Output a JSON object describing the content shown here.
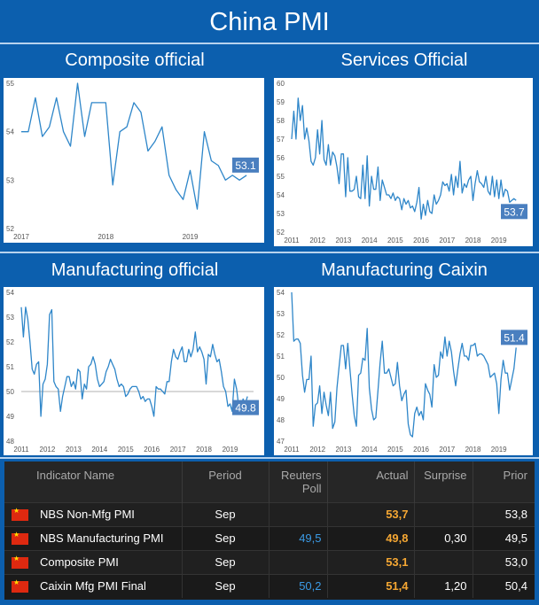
{
  "page": {
    "title": "China PMI"
  },
  "chart_data": [
    {
      "type": "line",
      "title": "Composite official",
      "x_tick_labels": [
        "2017",
        "2018",
        "2019"
      ],
      "x_tick_positions": [
        2017.0,
        2018.0,
        2019.0
      ],
      "xlim": [
        2017.0,
        2019.75
      ],
      "ylim": [
        52,
        55
      ],
      "y_ticks": [
        52,
        53,
        54,
        55
      ],
      "last_value_label": "53.1",
      "color": "#2e86c9",
      "series": [
        {
          "x": [
            2017.0,
            2017.083,
            2017.167,
            2017.25,
            2017.333,
            2017.417,
            2017.5,
            2017.583,
            2017.667,
            2017.75,
            2017.833,
            2017.917,
            2018.0,
            2018.083,
            2018.167,
            2018.25,
            2018.333,
            2018.417,
            2018.5,
            2018.583,
            2018.667,
            2018.75,
            2018.833,
            2018.917,
            2019.0,
            2019.083,
            2019.167,
            2019.25,
            2019.333,
            2019.417,
            2019.5,
            2019.583,
            2019.667
          ],
          "values": [
            54.0,
            54.0,
            54.7,
            53.9,
            54.1,
            54.7,
            54.0,
            53.7,
            55.0,
            53.9,
            54.6,
            54.6,
            54.6,
            52.9,
            54.0,
            54.1,
            54.6,
            54.4,
            53.6,
            53.8,
            54.1,
            53.1,
            52.8,
            52.6,
            53.2,
            52.4,
            54.0,
            53.4,
            53.3,
            53.0,
            53.1,
            53.0,
            53.1
          ]
        }
      ]
    },
    {
      "type": "line",
      "title": "Services Official",
      "x_tick_labels": [
        "2011",
        "2012",
        "2013",
        "2014",
        "2015",
        "2016",
        "2017",
        "2018",
        "2019"
      ],
      "x_tick_positions": [
        2011,
        2012,
        2013,
        2014,
        2015,
        2016,
        2017,
        2018,
        2019
      ],
      "xlim": [
        2011.0,
        2019.9
      ],
      "ylim": [
        52,
        60
      ],
      "y_ticks": [
        52,
        53,
        54,
        55,
        56,
        57,
        58,
        59,
        60
      ],
      "last_value_label": "53.7",
      "color": "#2e86c9",
      "series": [
        {
          "x": [
            2011.0,
            2011.083,
            2011.167,
            2011.25,
            2011.333,
            2011.417,
            2011.5,
            2011.583,
            2011.667,
            2011.75,
            2011.833,
            2011.917,
            2012.0,
            2012.083,
            2012.167,
            2012.25,
            2012.333,
            2012.417,
            2012.5,
            2012.583,
            2012.667,
            2012.75,
            2012.833,
            2012.917,
            2013.0,
            2013.083,
            2013.167,
            2013.25,
            2013.333,
            2013.417,
            2013.5,
            2013.583,
            2013.667,
            2013.75,
            2013.833,
            2013.917,
            2014.0,
            2014.083,
            2014.167,
            2014.25,
            2014.333,
            2014.417,
            2014.5,
            2014.583,
            2014.667,
            2014.75,
            2014.833,
            2014.917,
            2015.0,
            2015.083,
            2015.167,
            2015.25,
            2015.333,
            2015.417,
            2015.5,
            2015.583,
            2015.667,
            2015.75,
            2015.833,
            2015.917,
            2016.0,
            2016.083,
            2016.167,
            2016.25,
            2016.333,
            2016.417,
            2016.5,
            2016.583,
            2016.667,
            2016.75,
            2016.833,
            2016.917,
            2017.0,
            2017.083,
            2017.167,
            2017.25,
            2017.333,
            2017.417,
            2017.5,
            2017.583,
            2017.667,
            2017.75,
            2017.833,
            2017.917,
            2018.0,
            2018.083,
            2018.167,
            2018.25,
            2018.333,
            2018.417,
            2018.5,
            2018.583,
            2018.667,
            2018.75,
            2018.833,
            2018.917,
            2019.0,
            2019.083,
            2019.167,
            2019.25,
            2019.333,
            2019.417,
            2019.5,
            2019.583,
            2019.667
          ],
          "values": [
            57.0,
            58.5,
            57.0,
            59.2,
            58.0,
            58.8,
            57.0,
            57.6,
            56.9,
            55.8,
            55.6,
            56.0,
            57.5,
            56.2,
            58.0,
            55.9,
            55.6,
            56.7,
            55.6,
            56.3,
            56.1,
            55.5,
            54.6,
            56.2,
            56.2,
            53.9,
            56.0,
            54.2,
            54.2,
            54.3,
            55.0,
            53.9,
            53.8,
            55.6,
            53.8,
            56.1,
            53.4,
            55.0,
            54.3,
            54.3,
            55.5,
            53.7,
            54.8,
            54.4,
            54.0,
            54.0,
            53.8,
            54.1,
            53.7,
            53.9,
            53.8,
            53.2,
            53.8,
            53.5,
            53.7,
            53.3,
            53.4,
            53.1,
            53.6,
            54.4,
            52.7,
            53.5,
            52.9,
            53.7,
            53.1,
            53.0,
            54.0,
            53.5,
            53.7,
            54.0,
            54.7,
            54.5,
            54.6,
            54.2,
            55.1,
            54.0,
            55.0,
            54.4,
            55.8,
            54.1,
            54.6,
            54.4,
            54.8,
            55.0,
            53.7,
            54.6,
            55.3,
            54.7,
            54.6,
            54.4,
            55.0,
            54.2,
            54.0,
            55.0,
            53.9,
            54.8,
            53.8,
            54.8,
            53.9,
            54.3,
            54.2,
            53.6,
            53.7,
            53.8,
            53.7
          ]
        }
      ]
    },
    {
      "type": "line",
      "title": "Manufacturing official",
      "x_tick_labels": [
        "2011",
        "2012",
        "2013",
        "2014",
        "2015",
        "2016",
        "2017",
        "2018",
        "2019"
      ],
      "x_tick_positions": [
        2011,
        2012,
        2013,
        2014,
        2015,
        2016,
        2017,
        2018,
        2019
      ],
      "xlim": [
        2011.0,
        2019.9
      ],
      "ylim": [
        48,
        54
      ],
      "y_ticks": [
        48,
        49,
        50,
        51,
        52,
        53,
        54
      ],
      "reference_line": 50,
      "last_value_label": "49.8",
      "color": "#2e86c9",
      "series": [
        {
          "x": [
            2011.0,
            2011.083,
            2011.167,
            2011.25,
            2011.333,
            2011.417,
            2011.5,
            2011.583,
            2011.667,
            2011.75,
            2011.833,
            2011.917,
            2012.0,
            2012.083,
            2012.167,
            2012.25,
            2012.333,
            2012.417,
            2012.5,
            2012.583,
            2012.667,
            2012.75,
            2012.833,
            2012.917,
            2013.0,
            2013.083,
            2013.167,
            2013.25,
            2013.333,
            2013.417,
            2013.5,
            2013.583,
            2013.667,
            2013.75,
            2013.833,
            2013.917,
            2014.0,
            2014.083,
            2014.167,
            2014.25,
            2014.333,
            2014.417,
            2014.5,
            2014.583,
            2014.667,
            2014.75,
            2014.833,
            2014.917,
            2015.0,
            2015.083,
            2015.167,
            2015.25,
            2015.333,
            2015.417,
            2015.5,
            2015.583,
            2015.667,
            2015.75,
            2015.833,
            2015.917,
            2016.0,
            2016.083,
            2016.167,
            2016.25,
            2016.333,
            2016.417,
            2016.5,
            2016.583,
            2016.667,
            2016.75,
            2016.833,
            2016.917,
            2017.0,
            2017.083,
            2017.167,
            2017.25,
            2017.333,
            2017.417,
            2017.5,
            2017.583,
            2017.667,
            2017.75,
            2017.833,
            2017.917,
            2018.0,
            2018.083,
            2018.167,
            2018.25,
            2018.333,
            2018.417,
            2018.5,
            2018.583,
            2018.667,
            2018.75,
            2018.833,
            2018.917,
            2019.0,
            2019.083,
            2019.167,
            2019.25,
            2019.333,
            2019.417,
            2019.5,
            2019.583,
            2019.667
          ],
          "values": [
            53.4,
            52.2,
            53.4,
            52.9,
            52.0,
            50.9,
            50.7,
            51.1,
            51.2,
            49.0,
            50.3,
            50.5,
            51.1,
            53.1,
            53.3,
            50.4,
            50.2,
            50.1,
            49.2,
            49.8,
            50.2,
            50.6,
            50.6,
            50.2,
            50.4,
            50.1,
            50.9,
            50.8,
            49.7,
            50.3,
            50.1,
            51.0,
            51.1,
            51.4,
            51.1,
            50.5,
            50.2,
            50.3,
            50.4,
            50.8,
            51.0,
            51.3,
            51.1,
            50.9,
            50.5,
            50.2,
            50.3,
            50.2,
            49.8,
            49.9,
            50.1,
            50.2,
            50.2,
            50.2,
            50.0,
            49.7,
            49.8,
            49.6,
            49.7,
            49.7,
            49.4,
            49.0,
            50.2,
            50.1,
            50.1,
            50.0,
            49.9,
            50.4,
            50.4,
            51.2,
            51.7,
            51.4,
            51.3,
            51.6,
            51.8,
            51.2,
            51.2,
            51.7,
            51.4,
            51.7,
            52.4,
            51.6,
            51.8,
            51.6,
            51.3,
            50.3,
            51.5,
            51.4,
            51.9,
            51.5,
            51.2,
            51.3,
            50.8,
            50.2,
            50.0,
            49.4,
            49.5,
            49.2,
            50.5,
            50.1,
            49.4,
            49.4,
            49.7,
            49.5,
            49.8
          ]
        }
      ]
    },
    {
      "type": "line",
      "title": "Manufacturing Caixin",
      "x_tick_labels": [
        "2011",
        "2012",
        "2013",
        "2014",
        "2015",
        "2016",
        "2017",
        "2018",
        "2019"
      ],
      "x_tick_positions": [
        2011,
        2012,
        2013,
        2014,
        2015,
        2016,
        2017,
        2018,
        2019
      ],
      "xlim": [
        2011.0,
        2019.9
      ],
      "ylim": [
        47,
        54
      ],
      "y_ticks": [
        47,
        48,
        49,
        50,
        51,
        52,
        53,
        54
      ],
      "last_value_label": "51.4",
      "color": "#2e86c9",
      "series": [
        {
          "x": [
            2011.0,
            2011.083,
            2011.167,
            2011.25,
            2011.333,
            2011.417,
            2011.5,
            2011.583,
            2011.667,
            2011.75,
            2011.833,
            2011.917,
            2012.0,
            2012.083,
            2012.167,
            2012.25,
            2012.333,
            2012.417,
            2012.5,
            2012.583,
            2012.667,
            2012.75,
            2012.833,
            2012.917,
            2013.0,
            2013.083,
            2013.167,
            2013.25,
            2013.333,
            2013.417,
            2013.5,
            2013.583,
            2013.667,
            2013.75,
            2013.833,
            2013.917,
            2014.0,
            2014.083,
            2014.167,
            2014.25,
            2014.333,
            2014.417,
            2014.5,
            2014.583,
            2014.667,
            2014.75,
            2014.833,
            2014.917,
            2015.0,
            2015.083,
            2015.167,
            2015.25,
            2015.333,
            2015.417,
            2015.5,
            2015.583,
            2015.667,
            2015.75,
            2015.833,
            2015.917,
            2016.0,
            2016.083,
            2016.167,
            2016.25,
            2016.333,
            2016.417,
            2016.5,
            2016.583,
            2016.667,
            2016.75,
            2016.833,
            2016.917,
            2017.0,
            2017.083,
            2017.167,
            2017.25,
            2017.333,
            2017.417,
            2017.5,
            2017.583,
            2017.667,
            2017.75,
            2017.833,
            2017.917,
            2018.0,
            2018.083,
            2018.167,
            2018.25,
            2018.333,
            2018.417,
            2018.5,
            2018.583,
            2018.667,
            2018.75,
            2018.833,
            2018.917,
            2019.0,
            2019.083,
            2019.167,
            2019.25,
            2019.333,
            2019.417,
            2019.5,
            2019.583,
            2019.667
          ],
          "values": [
            54.0,
            51.7,
            51.8,
            51.8,
            51.6,
            50.1,
            49.3,
            49.9,
            49.9,
            51.0,
            47.7,
            48.7,
            48.8,
            49.6,
            48.3,
            49.3,
            48.7,
            48.2,
            49.3,
            47.6,
            47.9,
            49.5,
            50.5,
            51.5,
            51.5,
            50.4,
            51.6,
            50.4,
            49.2,
            48.2,
            47.7,
            50.1,
            50.2,
            50.9,
            50.8,
            52.3,
            49.5,
            48.5,
            48.0,
            48.1,
            49.4,
            50.7,
            51.7,
            50.2,
            50.2,
            50.4,
            50.0,
            49.6,
            49.7,
            50.7,
            49.6,
            48.9,
            49.2,
            49.4,
            47.8,
            47.3,
            47.2,
            48.3,
            48.6,
            48.2,
            48.4,
            48.0,
            49.7,
            49.4,
            49.2,
            48.6,
            50.6,
            50.0,
            50.1,
            51.2,
            50.9,
            51.9,
            51.0,
            51.7,
            51.2,
            50.3,
            49.6,
            50.4,
            51.1,
            51.6,
            51.0,
            51.0,
            50.8,
            51.5,
            51.5,
            51.6,
            51.0,
            51.1,
            51.1,
            51.0,
            50.8,
            50.6,
            50.0,
            50.1,
            50.2,
            49.7,
            48.3,
            49.9,
            50.8,
            50.2,
            50.2,
            49.4,
            49.9,
            50.4,
            51.4
          ]
        }
      ]
    }
  ],
  "table": {
    "headers": {
      "name": "Indicator Name",
      "period": "Period",
      "poll_line1": "Reuters",
      "poll_line2": "Poll",
      "actual": "Actual",
      "surprise": "Surprise",
      "prior": "Prior"
    },
    "rows": [
      {
        "flag": "china-flag",
        "name": "NBS Non-Mfg PMI",
        "period": "Sep",
        "poll": "",
        "actual": "53,7",
        "surprise": "",
        "prior": "53,8"
      },
      {
        "flag": "china-flag",
        "name": "NBS Manufacturing PMI",
        "period": "Sep",
        "poll": "49,5",
        "actual": "49,8",
        "surprise": "0,30",
        "prior": "49,5"
      },
      {
        "flag": "china-flag",
        "name": "Composite PMI",
        "period": "Sep",
        "poll": "",
        "actual": "53,1",
        "surprise": "",
        "prior": "53,0"
      },
      {
        "flag": "china-flag",
        "name": "Caixin Mfg PMI Final",
        "period": "Sep",
        "poll": "50,2",
        "actual": "51,4",
        "surprise": "1,20",
        "prior": "50,4"
      }
    ],
    "colors": {
      "actual": "#f5a733",
      "poll": "#3b9be6"
    }
  }
}
